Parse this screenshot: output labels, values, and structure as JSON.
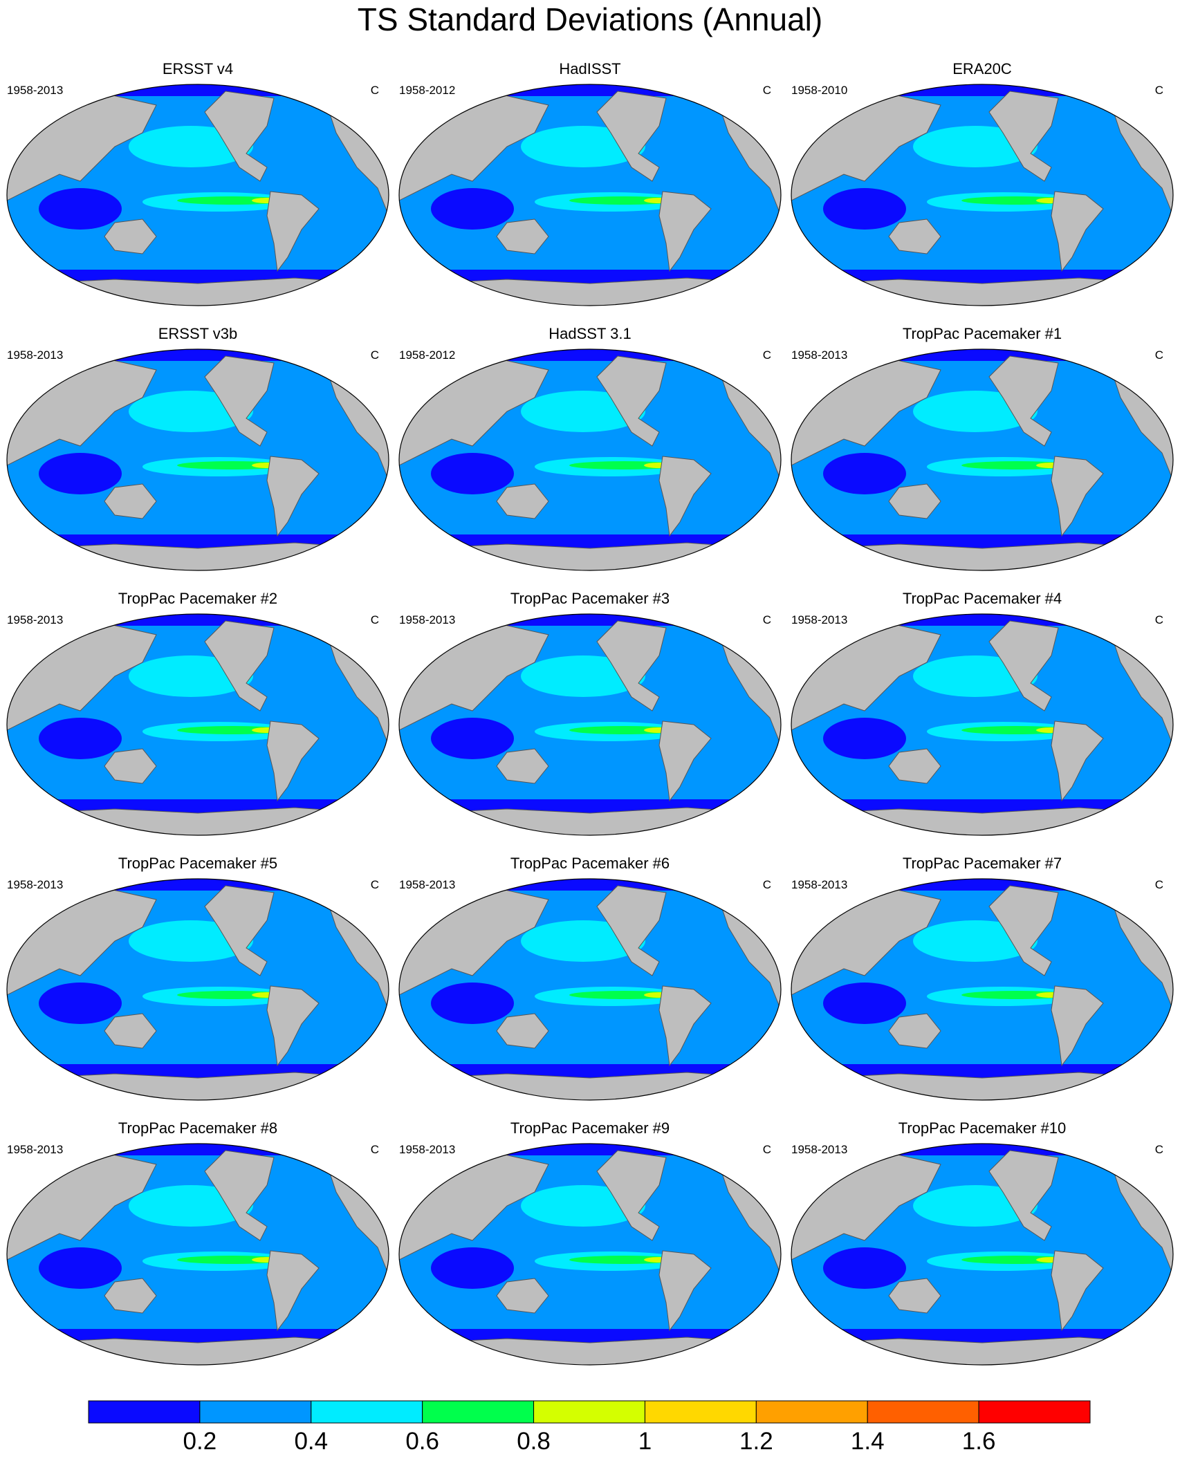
{
  "title": "TS Standard Deviations (Annual)",
  "panels": [
    {
      "title": "ERSST v4",
      "period": "1958-2013",
      "units": "C"
    },
    {
      "title": "HadISST",
      "period": "1958-2012",
      "units": "C"
    },
    {
      "title": "ERA20C",
      "period": "1958-2010",
      "units": "C"
    },
    {
      "title": "ERSST v3b",
      "period": "1958-2013",
      "units": "C"
    },
    {
      "title": "HadSST 3.1",
      "period": "1958-2012",
      "units": "C"
    },
    {
      "title": "TropPac Pacemaker #1",
      "period": "1958-2013",
      "units": "C"
    },
    {
      "title": "TropPac Pacemaker #2",
      "period": "1958-2013",
      "units": "C"
    },
    {
      "title": "TropPac Pacemaker #3",
      "period": "1958-2013",
      "units": "C"
    },
    {
      "title": "TropPac Pacemaker #4",
      "period": "1958-2013",
      "units": "C"
    },
    {
      "title": "TropPac Pacemaker #5",
      "period": "1958-2013",
      "units": "C"
    },
    {
      "title": "TropPac Pacemaker #6",
      "period": "1958-2013",
      "units": "C"
    },
    {
      "title": "TropPac Pacemaker #7",
      "period": "1958-2013",
      "units": "C"
    },
    {
      "title": "TropPac Pacemaker #8",
      "period": "1958-2013",
      "units": "C"
    },
    {
      "title": "TropPac Pacemaker #9",
      "period": "1958-2013",
      "units": "C"
    },
    {
      "title": "TropPac Pacemaker #10",
      "period": "1958-2013",
      "units": "C"
    }
  ],
  "colorbar": {
    "colors": [
      "#0a0aff",
      "#0096ff",
      "#00ecff",
      "#00ff4c",
      "#d4ff00",
      "#ffd800",
      "#ffa000",
      "#ff6000",
      "#ff0000"
    ],
    "levels": [
      0.2,
      0.4,
      0.6,
      0.8,
      1,
      1.2,
      1.4,
      1.6
    ]
  }
}
